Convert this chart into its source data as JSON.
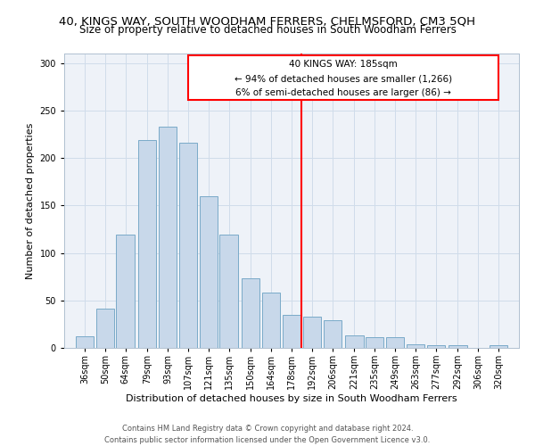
{
  "title": "40, KINGS WAY, SOUTH WOODHAM FERRERS, CHELMSFORD, CM3 5QH",
  "subtitle": "Size of property relative to detached houses in South Woodham Ferrers",
  "xlabel": "Distribution of detached houses by size in South Woodham Ferrers",
  "ylabel": "Number of detached properties",
  "footer_line1": "Contains HM Land Registry data © Crown copyright and database right 2024.",
  "footer_line2": "Contains public sector information licensed under the Open Government Licence v3.0.",
  "categories": [
    "36sqm",
    "50sqm",
    "64sqm",
    "79sqm",
    "93sqm",
    "107sqm",
    "121sqm",
    "135sqm",
    "150sqm",
    "164sqm",
    "178sqm",
    "192sqm",
    "206sqm",
    "221sqm",
    "235sqm",
    "249sqm",
    "263sqm",
    "277sqm",
    "292sqm",
    "306sqm",
    "320sqm"
  ],
  "values": [
    12,
    41,
    119,
    219,
    233,
    216,
    160,
    119,
    73,
    58,
    35,
    33,
    29,
    13,
    11,
    11,
    4,
    3,
    3,
    0,
    3
  ],
  "bar_color": "#c8d8ea",
  "bar_edge_color": "#7aaac8",
  "annotation_text_line1": "40 KINGS WAY: 185sqm",
  "annotation_text_line2": "← 94% of detached houses are smaller (1,266)",
  "annotation_text_line3": "6% of semi-detached houses are larger (86) →",
  "annotation_box_color": "white",
  "annotation_box_edge_color": "red",
  "vline_color": "red",
  "ylim": [
    0,
    310
  ],
  "grid_color": "#d0dcea",
  "bg_color": "#eef2f8",
  "title_fontsize": 9.5,
  "subtitle_fontsize": 8.5,
  "axis_label_fontsize": 8,
  "tick_fontsize": 7,
  "footer_fontsize": 6,
  "annotation_fontsize": 7.5
}
